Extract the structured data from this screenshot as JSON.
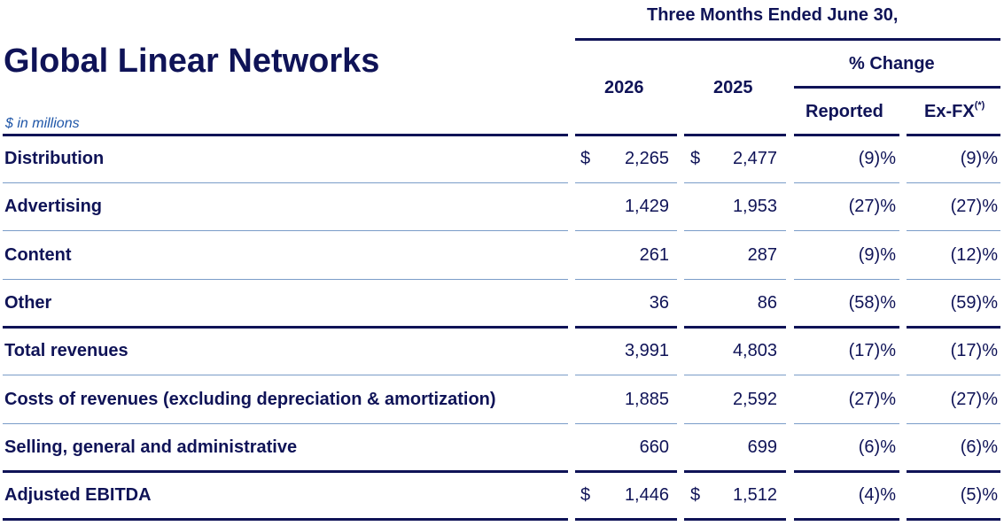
{
  "title": "Global Linear Networks",
  "units_note": "$ in millions",
  "header": {
    "period": "Three Months Ended June 30,",
    "year_current": "2026",
    "year_prior": "2025",
    "pct_change": "% Change",
    "reported": "Reported",
    "exfx": "Ex-FX",
    "exfx_mark": "(*)"
  },
  "rows": [
    {
      "label": "Distribution",
      "cur_sign": "$",
      "cur": "2,265",
      "prior_sign": "$",
      "prior": "2,477",
      "reported": "(9)%",
      "exfx": "(9)%"
    },
    {
      "label": "Advertising",
      "cur_sign": "",
      "cur": "1,429",
      "prior_sign": "",
      "prior": "1,953",
      "reported": "(27)%",
      "exfx": "(27)%"
    },
    {
      "label": "Content",
      "cur_sign": "",
      "cur": "261",
      "prior_sign": "",
      "prior": "287",
      "reported": "(9)%",
      "exfx": "(12)%"
    },
    {
      "label": "Other",
      "cur_sign": "",
      "cur": "36",
      "prior_sign": "",
      "prior": "86",
      "reported": "(58)%",
      "exfx": "(59)%"
    },
    {
      "label": "Total revenues",
      "cur_sign": "",
      "cur": "3,991",
      "prior_sign": "",
      "prior": "4,803",
      "reported": "(17)%",
      "exfx": "(17)%"
    },
    {
      "label": "Costs of revenues (excluding depreciation & amortization)",
      "cur_sign": "",
      "cur": "1,885",
      "prior_sign": "",
      "prior": "2,592",
      "reported": "(27)%",
      "exfx": "(27)%"
    },
    {
      "label": "Selling, general and administrative",
      "cur_sign": "",
      "cur": "660",
      "prior_sign": "",
      "prior": "699",
      "reported": "(6)%",
      "exfx": "(6)%"
    },
    {
      "label": "Adjusted EBITDA",
      "cur_sign": "$",
      "cur": "1,446",
      "prior_sign": "$",
      "prior": "1,512",
      "reported": "(4)%",
      "exfx": "(5)%"
    }
  ]
}
